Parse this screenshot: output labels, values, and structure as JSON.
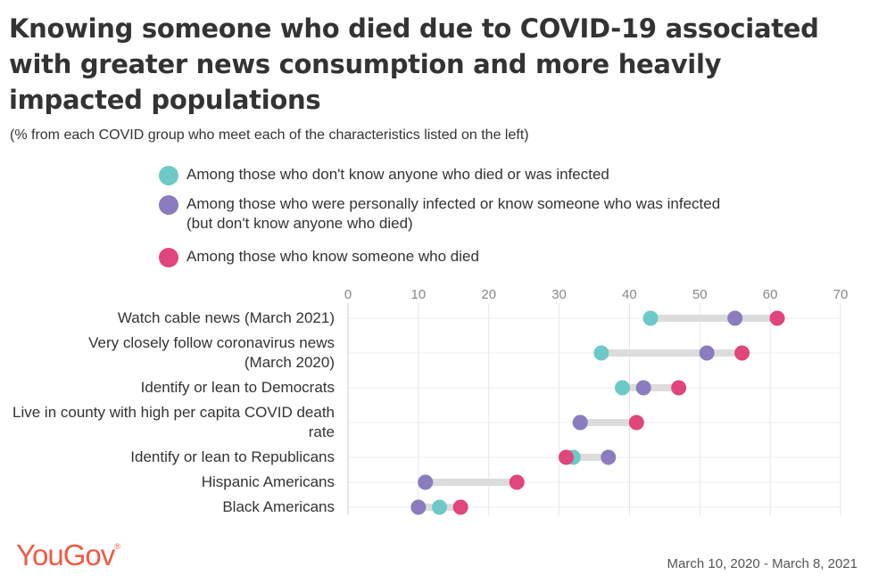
{
  "title": "Knowing someone who died due to COVID-19 associated with greater news consumption and more heavily impacted populations",
  "subtitle": "(% from each COVID group who meet each of the characteristics listed on the left)",
  "legend": [
    {
      "label": "Among those who don't know anyone who died or was infected",
      "color": "#6cc9c8"
    },
    {
      "label": "Among those who were personally infected or know someone who was infected (but don't know anyone who died)",
      "color": "#8b7bbf"
    },
    {
      "label": "Among those who know someone who died",
      "color": "#e0457b"
    }
  ],
  "rows": [
    {
      "label": "Watch cable news (March 2021)"
    },
    {
      "label": "Very closely follow coronavirus news (March 2020)"
    },
    {
      "label": "Identify or lean to Democrats"
    },
    {
      "label": "Live in county with high per capita COVID death rate"
    },
    {
      "label": "Identify or lean to Republicans"
    },
    {
      "label": "Hispanic Americans"
    },
    {
      "label": "Black Americans"
    }
  ],
  "chart_data": {
    "type": "scatter",
    "categories": [
      "Watch cable news (March 2021)",
      "Very closely follow coronavirus news (March 2020)",
      "Identify or lean to Democrats",
      "Live in county with high per capita COVID death rate",
      "Identify or lean to Republicans",
      "Hispanic Americans",
      "Black Americans"
    ],
    "series": [
      {
        "name": "Among those who don't know anyone who died or was infected",
        "values": [
          43,
          36,
          39,
          33,
          32,
          11,
          13
        ]
      },
      {
        "name": "Among those who were personally infected or know someone who was infected (but don't know anyone who died)",
        "values": [
          55,
          51,
          42,
          33,
          37,
          11,
          10
        ]
      },
      {
        "name": "Among those who know someone who died",
        "values": [
          61,
          56,
          47,
          41,
          31,
          24,
          16
        ]
      }
    ],
    "xlim": [
      0,
      70
    ],
    "xticks": [
      "0",
      "10",
      "20",
      "30",
      "40",
      "50",
      "60",
      "70"
    ],
    "grid": true
  },
  "footer": {
    "logo": "YouGov",
    "logo_mark": "®",
    "date_range": "March 10, 2020 - March 8, 2021"
  }
}
